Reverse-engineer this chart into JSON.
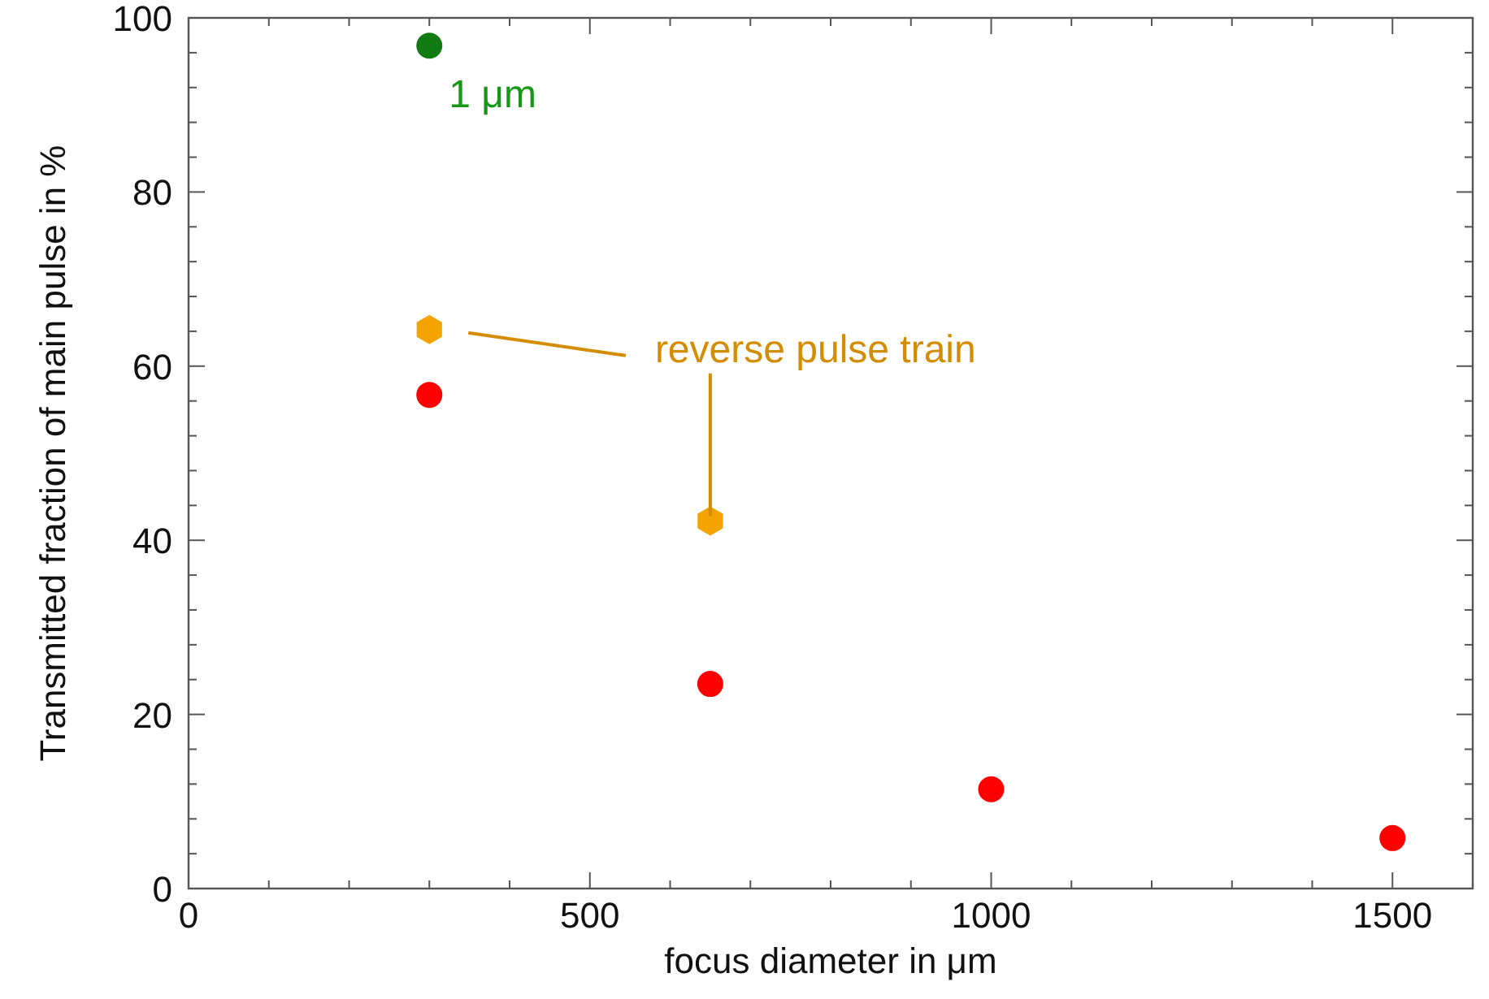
{
  "chart_data": {
    "type": "scatter",
    "xlabel": "focus diameter in μm",
    "ylabel": "Transmitted fraction of main pulse in %",
    "xlim": [
      0,
      1600
    ],
    "xticks": [
      0,
      500,
      1000,
      1500
    ],
    "ylim": [
      0,
      100
    ],
    "yticks": [
      0,
      20,
      40,
      60,
      80,
      100
    ],
    "grid": false,
    "series": [
      {
        "color": "#ff0000",
        "marker": "circle",
        "x": [
          300,
          650,
          1000,
          1500
        ],
        "values": [
          56.7,
          23.5,
          11.4,
          5.8
        ]
      },
      {
        "color": "#f5a300",
        "x": [
          300,
          650
        ],
        "values": [
          64.2,
          42.2
        ]
      },
      {
        "color": "#127a12",
        "marker": "circle",
        "x": [
          300
        ],
        "values": [
          96.8
        ]
      }
    ],
    "annotations": [
      {
        "text": "1 μm",
        "x": 300,
        "y": 96.8
      },
      {
        "text": "reverse pulse train",
        "x": 650,
        "y": 42.2
      }
    ]
  }
}
